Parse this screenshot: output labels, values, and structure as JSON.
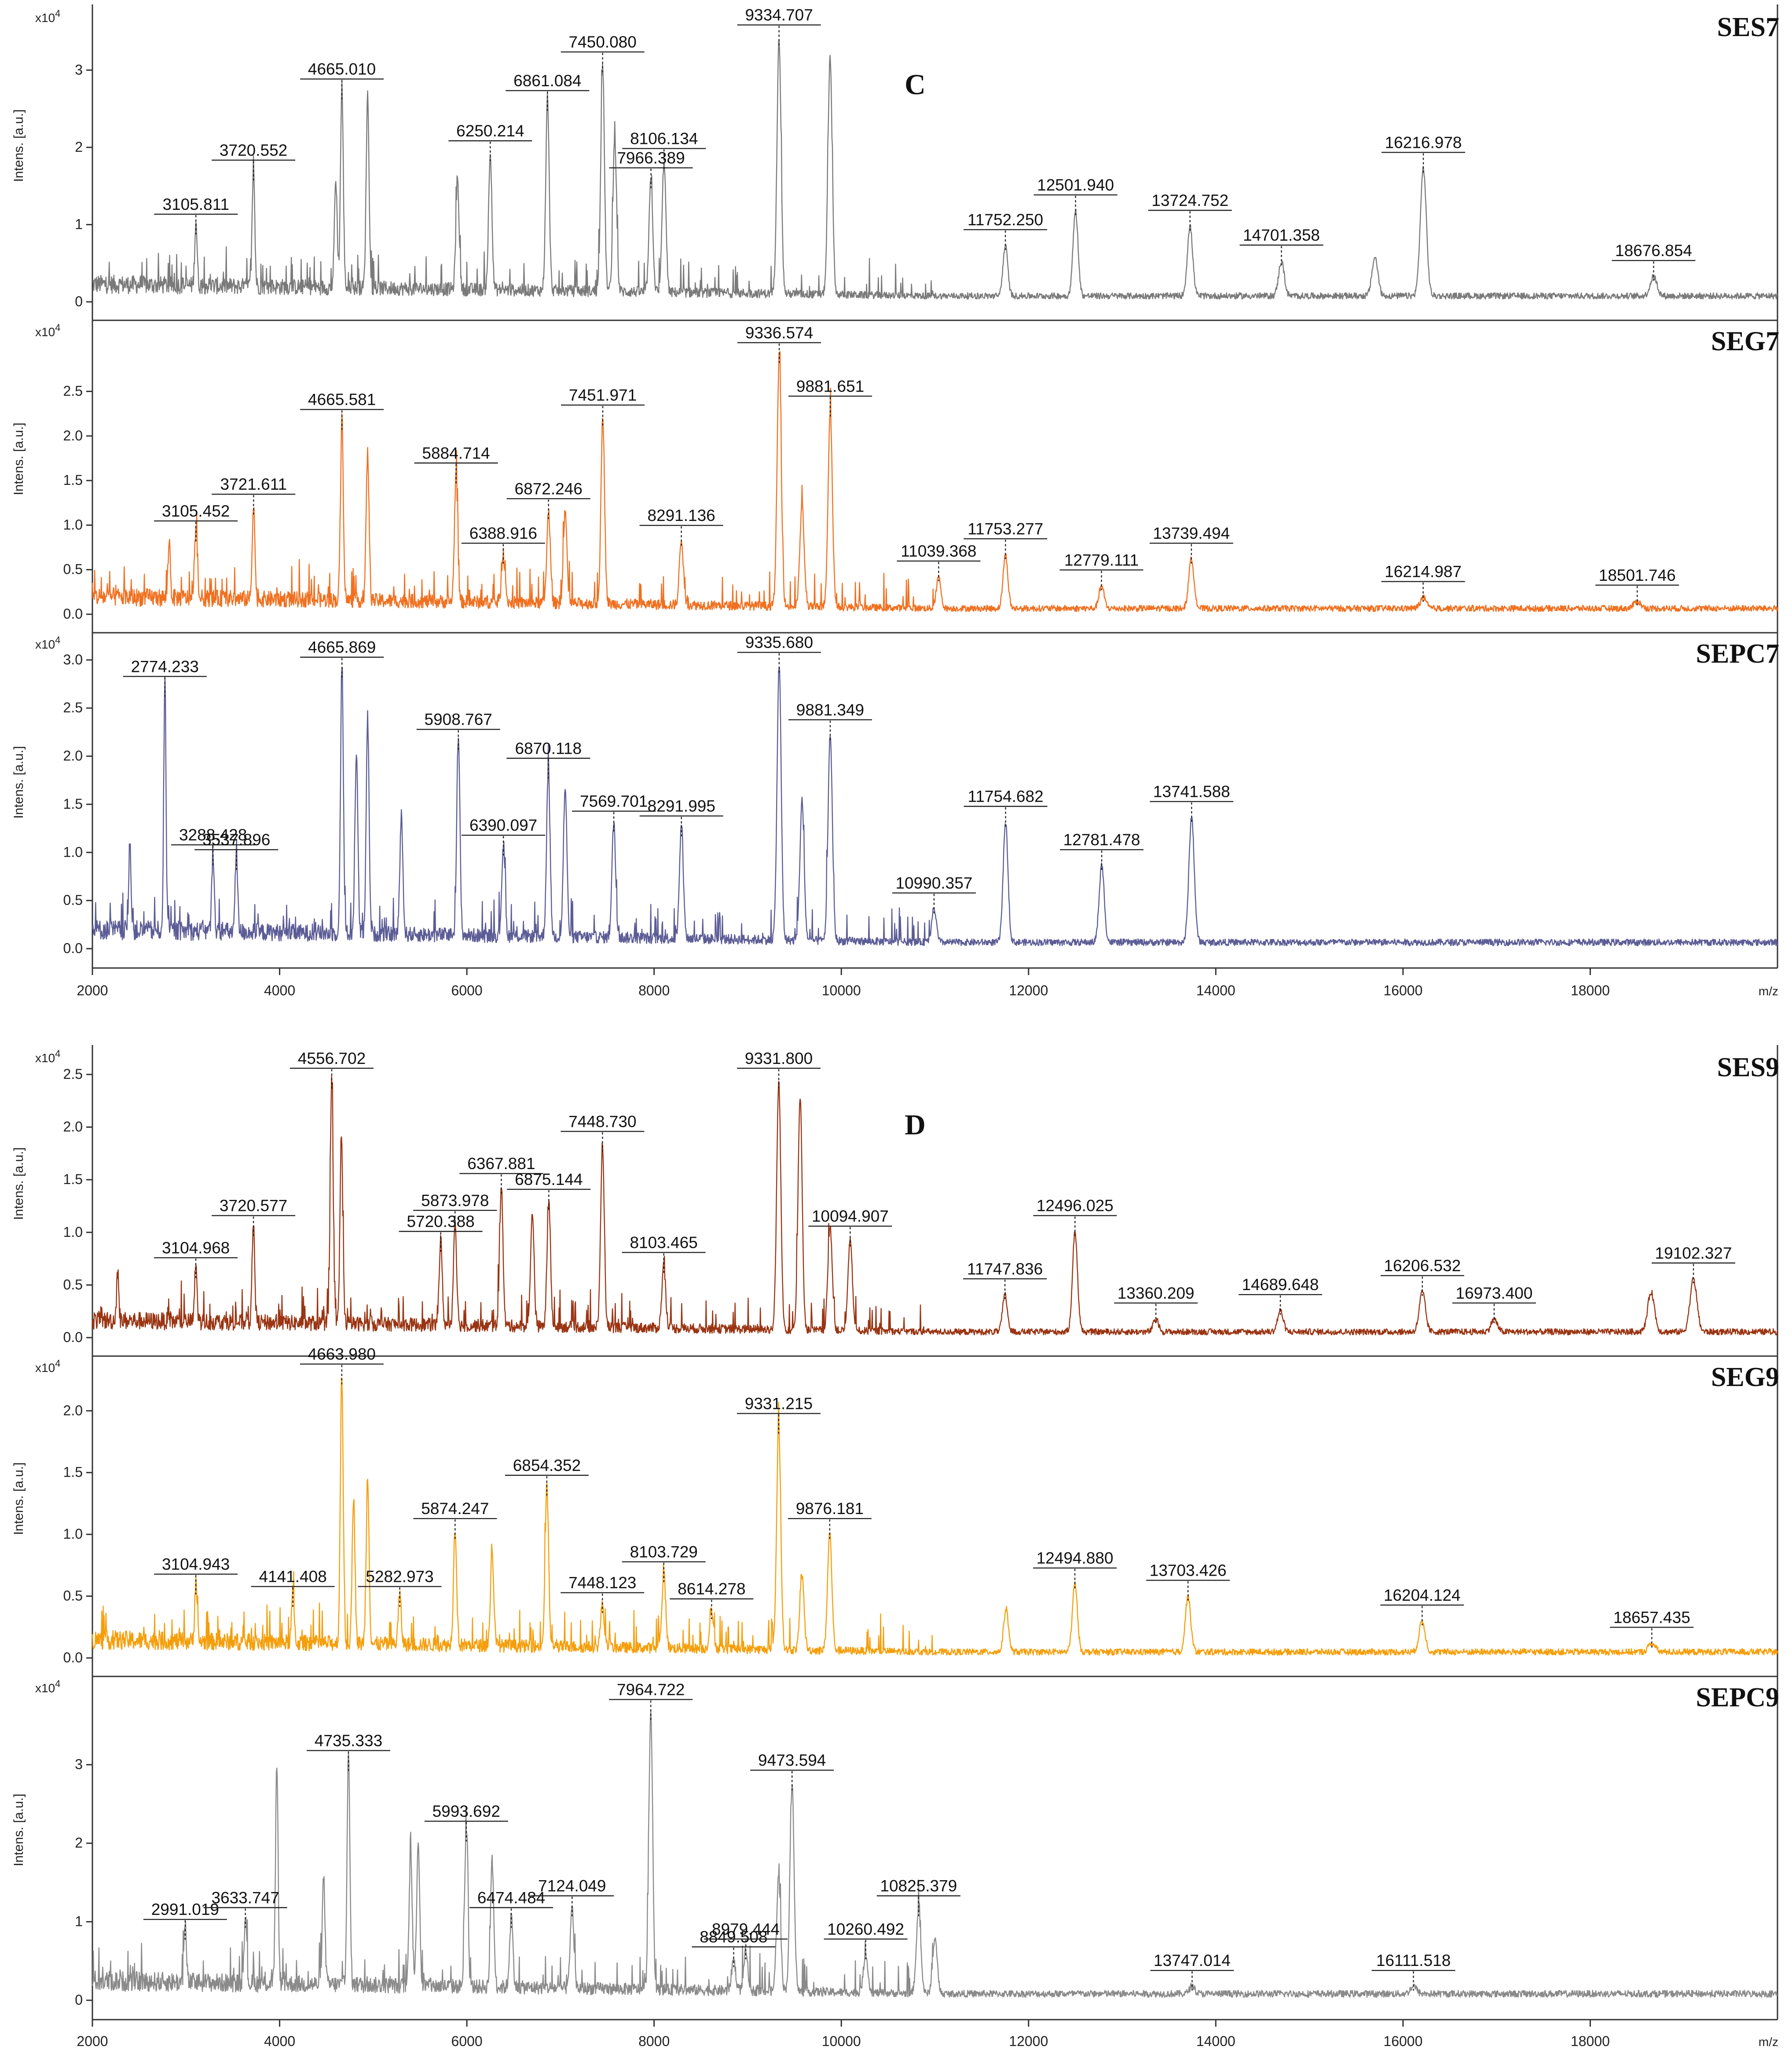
{
  "chart_data": [
    {
      "type": "line",
      "panel_letter": "C",
      "xlabel": "m/z",
      "xlim": [
        2000,
        20000
      ],
      "x_ticks": [
        2000,
        4000,
        6000,
        8000,
        10000,
        12000,
        14000,
        16000,
        18000
      ],
      "subplots": [
        {
          "name": "SES7",
          "color": "#7a7a7a",
          "ylabel": "Intens. [a.u.]",
          "yscale": "x10^4",
          "ylim": [
            0,
            3.6
          ],
          "y_ticks": [
            0,
            1,
            2,
            3
          ],
          "y_tick_labels": [
            "0",
            "1",
            "2",
            "3"
          ],
          "peaks": [
            {
              "mz": 3105.811,
              "intensity": 0.85,
              "label": "3105.811"
            },
            {
              "mz": 3720.552,
              "intensity": 1.55,
              "label": "3720.552"
            },
            {
              "mz": 4665.01,
              "intensity": 2.6,
              "label": "4665.010"
            },
            {
              "mz": 6250.214,
              "intensity": 1.8,
              "label": "6250.214"
            },
            {
              "mz": 6861.084,
              "intensity": 2.45,
              "label": "6861.084"
            },
            {
              "mz": 7450.08,
              "intensity": 2.95,
              "label": "7450.080"
            },
            {
              "mz": 7966.389,
              "intensity": 1.45,
              "label": "7966.389"
            },
            {
              "mz": 8106.134,
              "intensity": 1.7,
              "label": "8106.134"
            },
            {
              "mz": 9334.707,
              "intensity": 3.3,
              "label": "9334.707"
            },
            {
              "mz": 11752.25,
              "intensity": 0.65,
              "label": "11752.250"
            },
            {
              "mz": 12501.94,
              "intensity": 1.1,
              "label": "12501.940"
            },
            {
              "mz": 13724.752,
              "intensity": 0.9,
              "label": "13724.752"
            },
            {
              "mz": 14701.358,
              "intensity": 0.45,
              "label": "14701.358"
            },
            {
              "mz": 16216.978,
              "intensity": 1.65,
              "label": "16216.978"
            },
            {
              "mz": 18676.854,
              "intensity": 0.25,
              "label": "18676.854"
            }
          ],
          "extra_peaks": [
            {
              "mz": 4600,
              "intensity": 1.4
            },
            {
              "mz": 4940,
              "intensity": 2.5
            },
            {
              "mz": 5900,
              "intensity": 1.45
            },
            {
              "mz": 7580,
              "intensity": 2.0
            },
            {
              "mz": 9880,
              "intensity": 3.05
            },
            {
              "mz": 15700,
              "intensity": 0.5
            }
          ]
        },
        {
          "name": "SEG7",
          "color": "#f07020",
          "ylabel": "Intens. [a.u.]",
          "yscale": "x10^4",
          "ylim": [
            0,
            3.1
          ],
          "y_ticks": [
            0,
            0.5,
            1.0,
            1.5,
            2.0,
            2.5
          ],
          "y_tick_labels": [
            "0.0",
            "0.5",
            "1.0",
            "1.5",
            "2.0",
            "2.5"
          ],
          "peaks": [
            {
              "mz": 3105.452,
              "intensity": 0.8,
              "label": "3105.452"
            },
            {
              "mz": 3721.611,
              "intensity": 1.1,
              "label": "3721.611"
            },
            {
              "mz": 4665.581,
              "intensity": 2.05,
              "label": "4665.581"
            },
            {
              "mz": 5884.714,
              "intensity": 1.45,
              "label": "5884.714"
            },
            {
              "mz": 6388.916,
              "intensity": 0.55,
              "label": "6388.916"
            },
            {
              "mz": 6872.246,
              "intensity": 1.05,
              "label": "6872.246"
            },
            {
              "mz": 7451.971,
              "intensity": 2.1,
              "label": "7451.971"
            },
            {
              "mz": 8291.136,
              "intensity": 0.75,
              "label": "8291.136"
            },
            {
              "mz": 9336.574,
              "intensity": 2.8,
              "label": "9336.574"
            },
            {
              "mz": 9881.651,
              "intensity": 2.2,
              "label": "9881.651"
            },
            {
              "mz": 11039.368,
              "intensity": 0.35,
              "label": "11039.368"
            },
            {
              "mz": 11753.277,
              "intensity": 0.6,
              "label": "11753.277"
            },
            {
              "mz": 12779.111,
              "intensity": 0.25,
              "label": "12779.111"
            },
            {
              "mz": 13739.494,
              "intensity": 0.55,
              "label": "13739.494"
            },
            {
              "mz": 16214.987,
              "intensity": 0.12,
              "label": "16214.987"
            },
            {
              "mz": 18501.746,
              "intensity": 0.08,
              "label": "18501.746"
            }
          ],
          "extra_peaks": [
            {
              "mz": 4940,
              "intensity": 1.65
            },
            {
              "mz": 9580,
              "intensity": 1.15
            },
            {
              "mz": 7050,
              "intensity": 1.0
            },
            {
              "mz": 2820,
              "intensity": 0.65
            }
          ]
        },
        {
          "name": "SEPC7",
          "color": "#5c5c96",
          "ylabel": "Intens. [a.u.]",
          "yscale": "x10^4",
          "ylim": [
            0,
            3.1
          ],
          "y_ticks": [
            0,
            0.5,
            1.0,
            1.5,
            2.0,
            2.5,
            3.0
          ],
          "y_tick_labels": [
            "0.0",
            "0.5",
            "1.0",
            "1.5",
            "2.0",
            "2.5",
            "3.0"
          ],
          "peaks": [
            {
              "mz": 2774.233,
              "intensity": 2.6,
              "label": "2774.233"
            },
            {
              "mz": 3288.428,
              "intensity": 0.85,
              "label": "3288.428"
            },
            {
              "mz": 3537.896,
              "intensity": 0.8,
              "label": "3537.896"
            },
            {
              "mz": 4665.869,
              "intensity": 2.8,
              "label": "4665.869"
            },
            {
              "mz": 5908.767,
              "intensity": 2.05,
              "label": "5908.767"
            },
            {
              "mz": 6390.097,
              "intensity": 0.95,
              "label": "6390.097"
            },
            {
              "mz": 6870.118,
              "intensity": 1.75,
              "label": "6870.118"
            },
            {
              "mz": 7569.701,
              "intensity": 1.2,
              "label": "7569.701"
            },
            {
              "mz": 8291.995,
              "intensity": 1.15,
              "label": "8291.995"
            },
            {
              "mz": 9335.68,
              "intensity": 2.85,
              "label": "9335.680"
            },
            {
              "mz": 9881.349,
              "intensity": 2.15,
              "label": "9881.349"
            },
            {
              "mz": 10990.357,
              "intensity": 0.35,
              "label": "10990.357"
            },
            {
              "mz": 11754.682,
              "intensity": 1.25,
              "label": "11754.682"
            },
            {
              "mz": 12781.478,
              "intensity": 0.8,
              "label": "12781.478"
            },
            {
              "mz": 13741.588,
              "intensity": 1.3,
              "label": "13741.588"
            }
          ],
          "extra_peaks": [
            {
              "mz": 4820,
              "intensity": 1.9
            },
            {
              "mz": 4940,
              "intensity": 2.25
            },
            {
              "mz": 7050,
              "intensity": 1.55
            },
            {
              "mz": 9580,
              "intensity": 1.45
            },
            {
              "mz": 5300,
              "intensity": 1.25
            },
            {
              "mz": 2400,
              "intensity": 0.95
            }
          ]
        }
      ]
    },
    {
      "type": "line",
      "panel_letter": "D",
      "xlabel": "m/z",
      "xlim": [
        2000,
        20000
      ],
      "x_ticks": [
        2000,
        4000,
        6000,
        8000,
        10000,
        12000,
        14000,
        16000,
        18000
      ],
      "subplots": [
        {
          "name": "SES9",
          "color": "#9a3412",
          "ylabel": "Intens. [a.u.]",
          "yscale": "x10^4",
          "ylim": [
            0,
            2.6
          ],
          "y_ticks": [
            0,
            0.5,
            1.0,
            1.5,
            2.0,
            2.5
          ],
          "y_tick_labels": [
            "0.0",
            "0.5",
            "1.0",
            "1.5",
            "2.0",
            "2.5"
          ],
          "peaks": [
            {
              "mz": 3104.968,
              "intensity": 0.55,
              "label": "3104.968"
            },
            {
              "mz": 3720.577,
              "intensity": 0.95,
              "label": "3720.577"
            },
            {
              "mz": 4556.702,
              "intensity": 2.35,
              "label": "4556.702"
            },
            {
              "mz": 5720.388,
              "intensity": 0.8,
              "label": "5720.388"
            },
            {
              "mz": 5873.978,
              "intensity": 1.0,
              "label": "5873.978"
            },
            {
              "mz": 6367.881,
              "intensity": 1.35,
              "label": "6367.881"
            },
            {
              "mz": 6875.144,
              "intensity": 1.2,
              "label": "6875.144"
            },
            {
              "mz": 7448.73,
              "intensity": 1.75,
              "label": "7448.730"
            },
            {
              "mz": 8103.465,
              "intensity": 0.6,
              "label": "8103.465"
            },
            {
              "mz": 9331.8,
              "intensity": 2.35,
              "label": "9331.800"
            },
            {
              "mz": 10094.907,
              "intensity": 0.85,
              "label": "10094.907"
            },
            {
              "mz": 11747.836,
              "intensity": 0.35,
              "label": "11747.836"
            },
            {
              "mz": 12496.025,
              "intensity": 0.95,
              "label": "12496.025"
            },
            {
              "mz": 13360.209,
              "intensity": 0.12,
              "label": "13360.209"
            },
            {
              "mz": 14689.648,
              "intensity": 0.2,
              "label": "14689.648"
            },
            {
              "mz": 16206.532,
              "intensity": 0.38,
              "label": "16206.532"
            },
            {
              "mz": 16973.4,
              "intensity": 0.12,
              "label": "16973.400"
            },
            {
              "mz": 19102.327,
              "intensity": 0.5,
              "label": "19102.327"
            }
          ],
          "extra_peaks": [
            {
              "mz": 4660,
              "intensity": 1.8
            },
            {
              "mz": 9560,
              "intensity": 2.2
            },
            {
              "mz": 9880,
              "intensity": 1.0
            },
            {
              "mz": 18650,
              "intensity": 0.38
            },
            {
              "mz": 6700,
              "intensity": 1.1
            },
            {
              "mz": 2270,
              "intensity": 0.48
            }
          ]
        },
        {
          "name": "SEG9",
          "color": "#f59e0b",
          "ylabel": "Intens. [a.u.]",
          "yscale": "x10^4",
          "ylim": [
            0,
            2.3
          ],
          "y_ticks": [
            0,
            0.5,
            1.0,
            1.5,
            2.0
          ],
          "y_tick_labels": [
            "0.0",
            "0.5",
            "1.0",
            "1.5",
            "2.0"
          ],
          "peaks": [
            {
              "mz": 3104.943,
              "intensity": 0.5,
              "label": "3104.943"
            },
            {
              "mz": 4141.408,
              "intensity": 0.4,
              "label": "4141.408"
            },
            {
              "mz": 4663.98,
              "intensity": 2.2,
              "label": "4663.980"
            },
            {
              "mz": 5282.973,
              "intensity": 0.4,
              "label": "5282.973"
            },
            {
              "mz": 5874.247,
              "intensity": 0.95,
              "label": "5874.247"
            },
            {
              "mz": 6854.352,
              "intensity": 1.3,
              "label": "6854.352"
            },
            {
              "mz": 7448.123,
              "intensity": 0.35,
              "label": "7448.123"
            },
            {
              "mz": 8103.729,
              "intensity": 0.6,
              "label": "8103.729"
            },
            {
              "mz": 8614.278,
              "intensity": 0.3,
              "label": "8614.278"
            },
            {
              "mz": 9331.215,
              "intensity": 1.8,
              "label": "9331.215"
            },
            {
              "mz": 9876.181,
              "intensity": 0.95,
              "label": "9876.181"
            },
            {
              "mz": 12494.88,
              "intensity": 0.55,
              "label": "12494.880"
            },
            {
              "mz": 13703.426,
              "intensity": 0.45,
              "label": "13703.426"
            },
            {
              "mz": 16204.124,
              "intensity": 0.25,
              "label": "16204.124"
            },
            {
              "mz": 18657.435,
              "intensity": 0.07,
              "label": "18657.435"
            }
          ],
          "extra_peaks": [
            {
              "mz": 4940,
              "intensity": 1.35
            },
            {
              "mz": 4790,
              "intensity": 1.2
            },
            {
              "mz": 6270,
              "intensity": 0.75
            },
            {
              "mz": 9580,
              "intensity": 0.6
            },
            {
              "mz": 11760,
              "intensity": 0.35
            }
          ]
        },
        {
          "name": "SEPC9",
          "color": "#8a8a8a",
          "ylabel": "Intens. [a.u.]",
          "yscale": "x10^4",
          "ylim": [
            0,
            3.9
          ],
          "y_ticks": [
            0,
            1,
            2,
            3
          ],
          "y_tick_labels": [
            "0",
            "1",
            "2",
            "3"
          ],
          "peaks": [
            {
              "mz": 2991.019,
              "intensity": 0.75,
              "label": "2991.019"
            },
            {
              "mz": 3633.747,
              "intensity": 0.9,
              "label": "3633.747"
            },
            {
              "mz": 4735.333,
              "intensity": 2.9,
              "label": "4735.333"
            },
            {
              "mz": 5993.692,
              "intensity": 2.0,
              "label": "5993.692"
            },
            {
              "mz": 6474.484,
              "intensity": 0.9,
              "label": "6474.484"
            },
            {
              "mz": 7124.049,
              "intensity": 1.05,
              "label": "7124.049"
            },
            {
              "mz": 7964.722,
              "intensity": 3.55,
              "label": "7964.722"
            },
            {
              "mz": 8849.508,
              "intensity": 0.4,
              "label": "8849.508"
            },
            {
              "mz": 8979.444,
              "intensity": 0.5,
              "label": "8979.444"
            },
            {
              "mz": 9473.594,
              "intensity": 2.65,
              "label": "9473.594"
            },
            {
              "mz": 10260.492,
              "intensity": 0.5,
              "label": "10260.492"
            },
            {
              "mz": 10825.379,
              "intensity": 1.05,
              "label": "10825.379"
            },
            {
              "mz": 13747.014,
              "intensity": 0.1,
              "label": "13747.014"
            },
            {
              "mz": 16111.518,
              "intensity": 0.1,
              "label": "16111.518"
            }
          ],
          "extra_peaks": [
            {
              "mz": 3970,
              "intensity": 2.75
            },
            {
              "mz": 5400,
              "intensity": 1.75
            },
            {
              "mz": 5480,
              "intensity": 1.85
            },
            {
              "mz": 6270,
              "intensity": 1.6
            },
            {
              "mz": 9330,
              "intensity": 1.45
            },
            {
              "mz": 4470,
              "intensity": 1.35
            },
            {
              "mz": 11000,
              "intensity": 0.7
            }
          ]
        }
      ]
    }
  ]
}
